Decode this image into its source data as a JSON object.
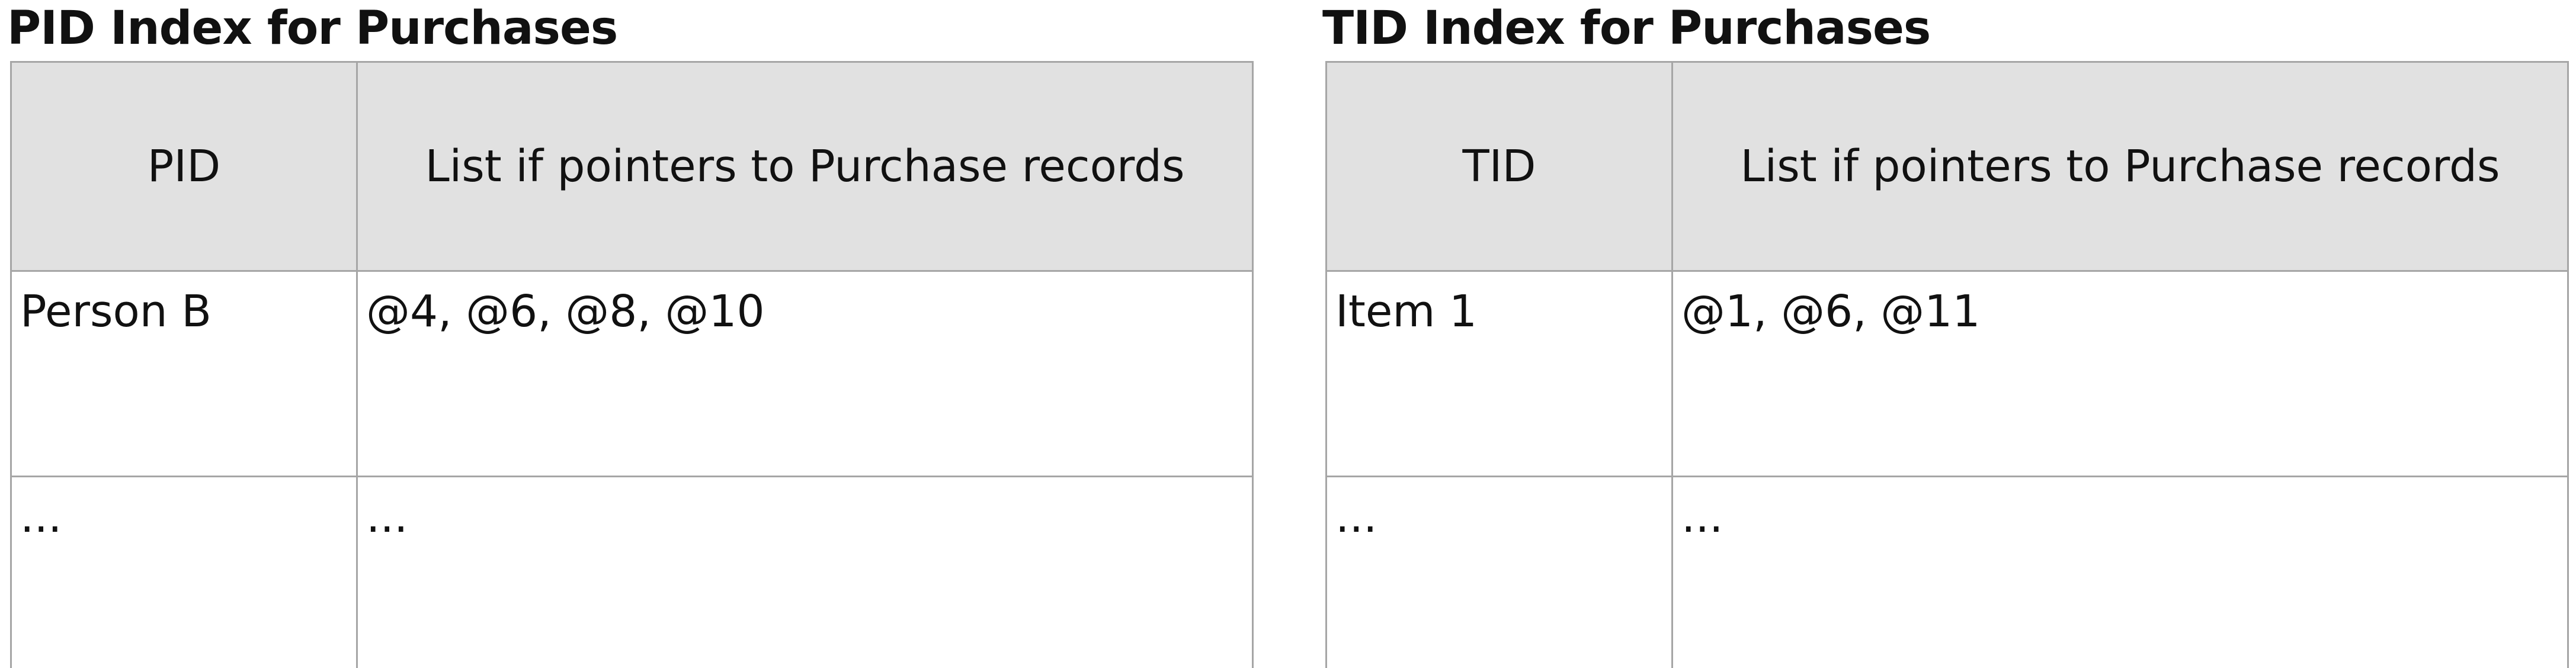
{
  "pid_index": {
    "title": "PID Index for Purchases",
    "headers": [
      "PID",
      "List if pointers to Purchase records"
    ],
    "rows": [
      [
        "Person B",
        "@4, @6, @8, @10"
      ],
      [
        "...",
        "..."
      ]
    ]
  },
  "tid_index": {
    "title": "TID Index for Purchases",
    "headers": [
      "TID",
      "List if pointers to Purchase records"
    ],
    "rows": [
      [
        "Item 1",
        "@1, @6, @11"
      ],
      [
        "...",
        "..."
      ]
    ]
  }
}
